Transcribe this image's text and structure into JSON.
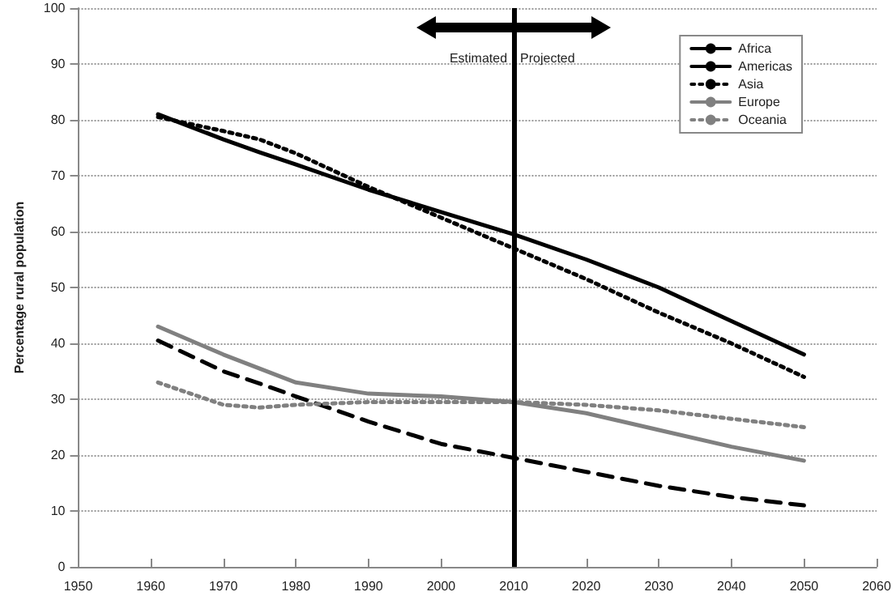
{
  "chart_data": {
    "type": "line",
    "ylabel": "Percentage rural population",
    "x": [
      1961,
      1970,
      1975,
      1980,
      1990,
      2000,
      2010,
      2020,
      2030,
      2040,
      2050
    ],
    "series": [
      {
        "name": "Africa",
        "color": "#000000",
        "line_style": "solid",
        "values": [
          81,
          76.5,
          74.2,
          72,
          67.5,
          63.5,
          59.5,
          55,
          50,
          44,
          38
        ]
      },
      {
        "name": "Americas",
        "color": "#000000",
        "line_style": "dashed",
        "values": [
          40.5,
          35,
          32.8,
          30.5,
          26,
          22,
          19.5,
          17,
          14.5,
          12.5,
          11
        ]
      },
      {
        "name": "Asia",
        "color": "#000000",
        "line_style": "dotted",
        "values": [
          80.5,
          78,
          76.5,
          74,
          68,
          62.5,
          57,
          51.5,
          45.5,
          40,
          34
        ]
      },
      {
        "name": "Europe",
        "color": "#808080",
        "line_style": "solid",
        "values": [
          43,
          38,
          35.5,
          33,
          31,
          30.5,
          29.5,
          27.5,
          24.5,
          21.5,
          19
        ]
      },
      {
        "name": "Oceania",
        "color": "#808080",
        "line_style": "dotted",
        "values": [
          33,
          29,
          28.5,
          29,
          29.5,
          29.5,
          29.5,
          29,
          28,
          26.5,
          25
        ]
      }
    ],
    "xlim": [
      1950,
      2060
    ],
    "xticks": [
      1950,
      1960,
      1970,
      1980,
      1990,
      2000,
      2010,
      2020,
      2030,
      2040,
      2050,
      2060
    ],
    "ylim": [
      0,
      100
    ],
    "yticks": [
      0,
      10,
      20,
      30,
      40,
      50,
      60,
      70,
      80,
      90,
      100
    ],
    "grid": "y",
    "legend": "top right",
    "marker": "none",
    "ref_lines": [
      {
        "axis": "x",
        "value": 2010,
        "color": "#000000"
      }
    ],
    "annotations": [
      "Estimated",
      "Projected"
    ]
  }
}
